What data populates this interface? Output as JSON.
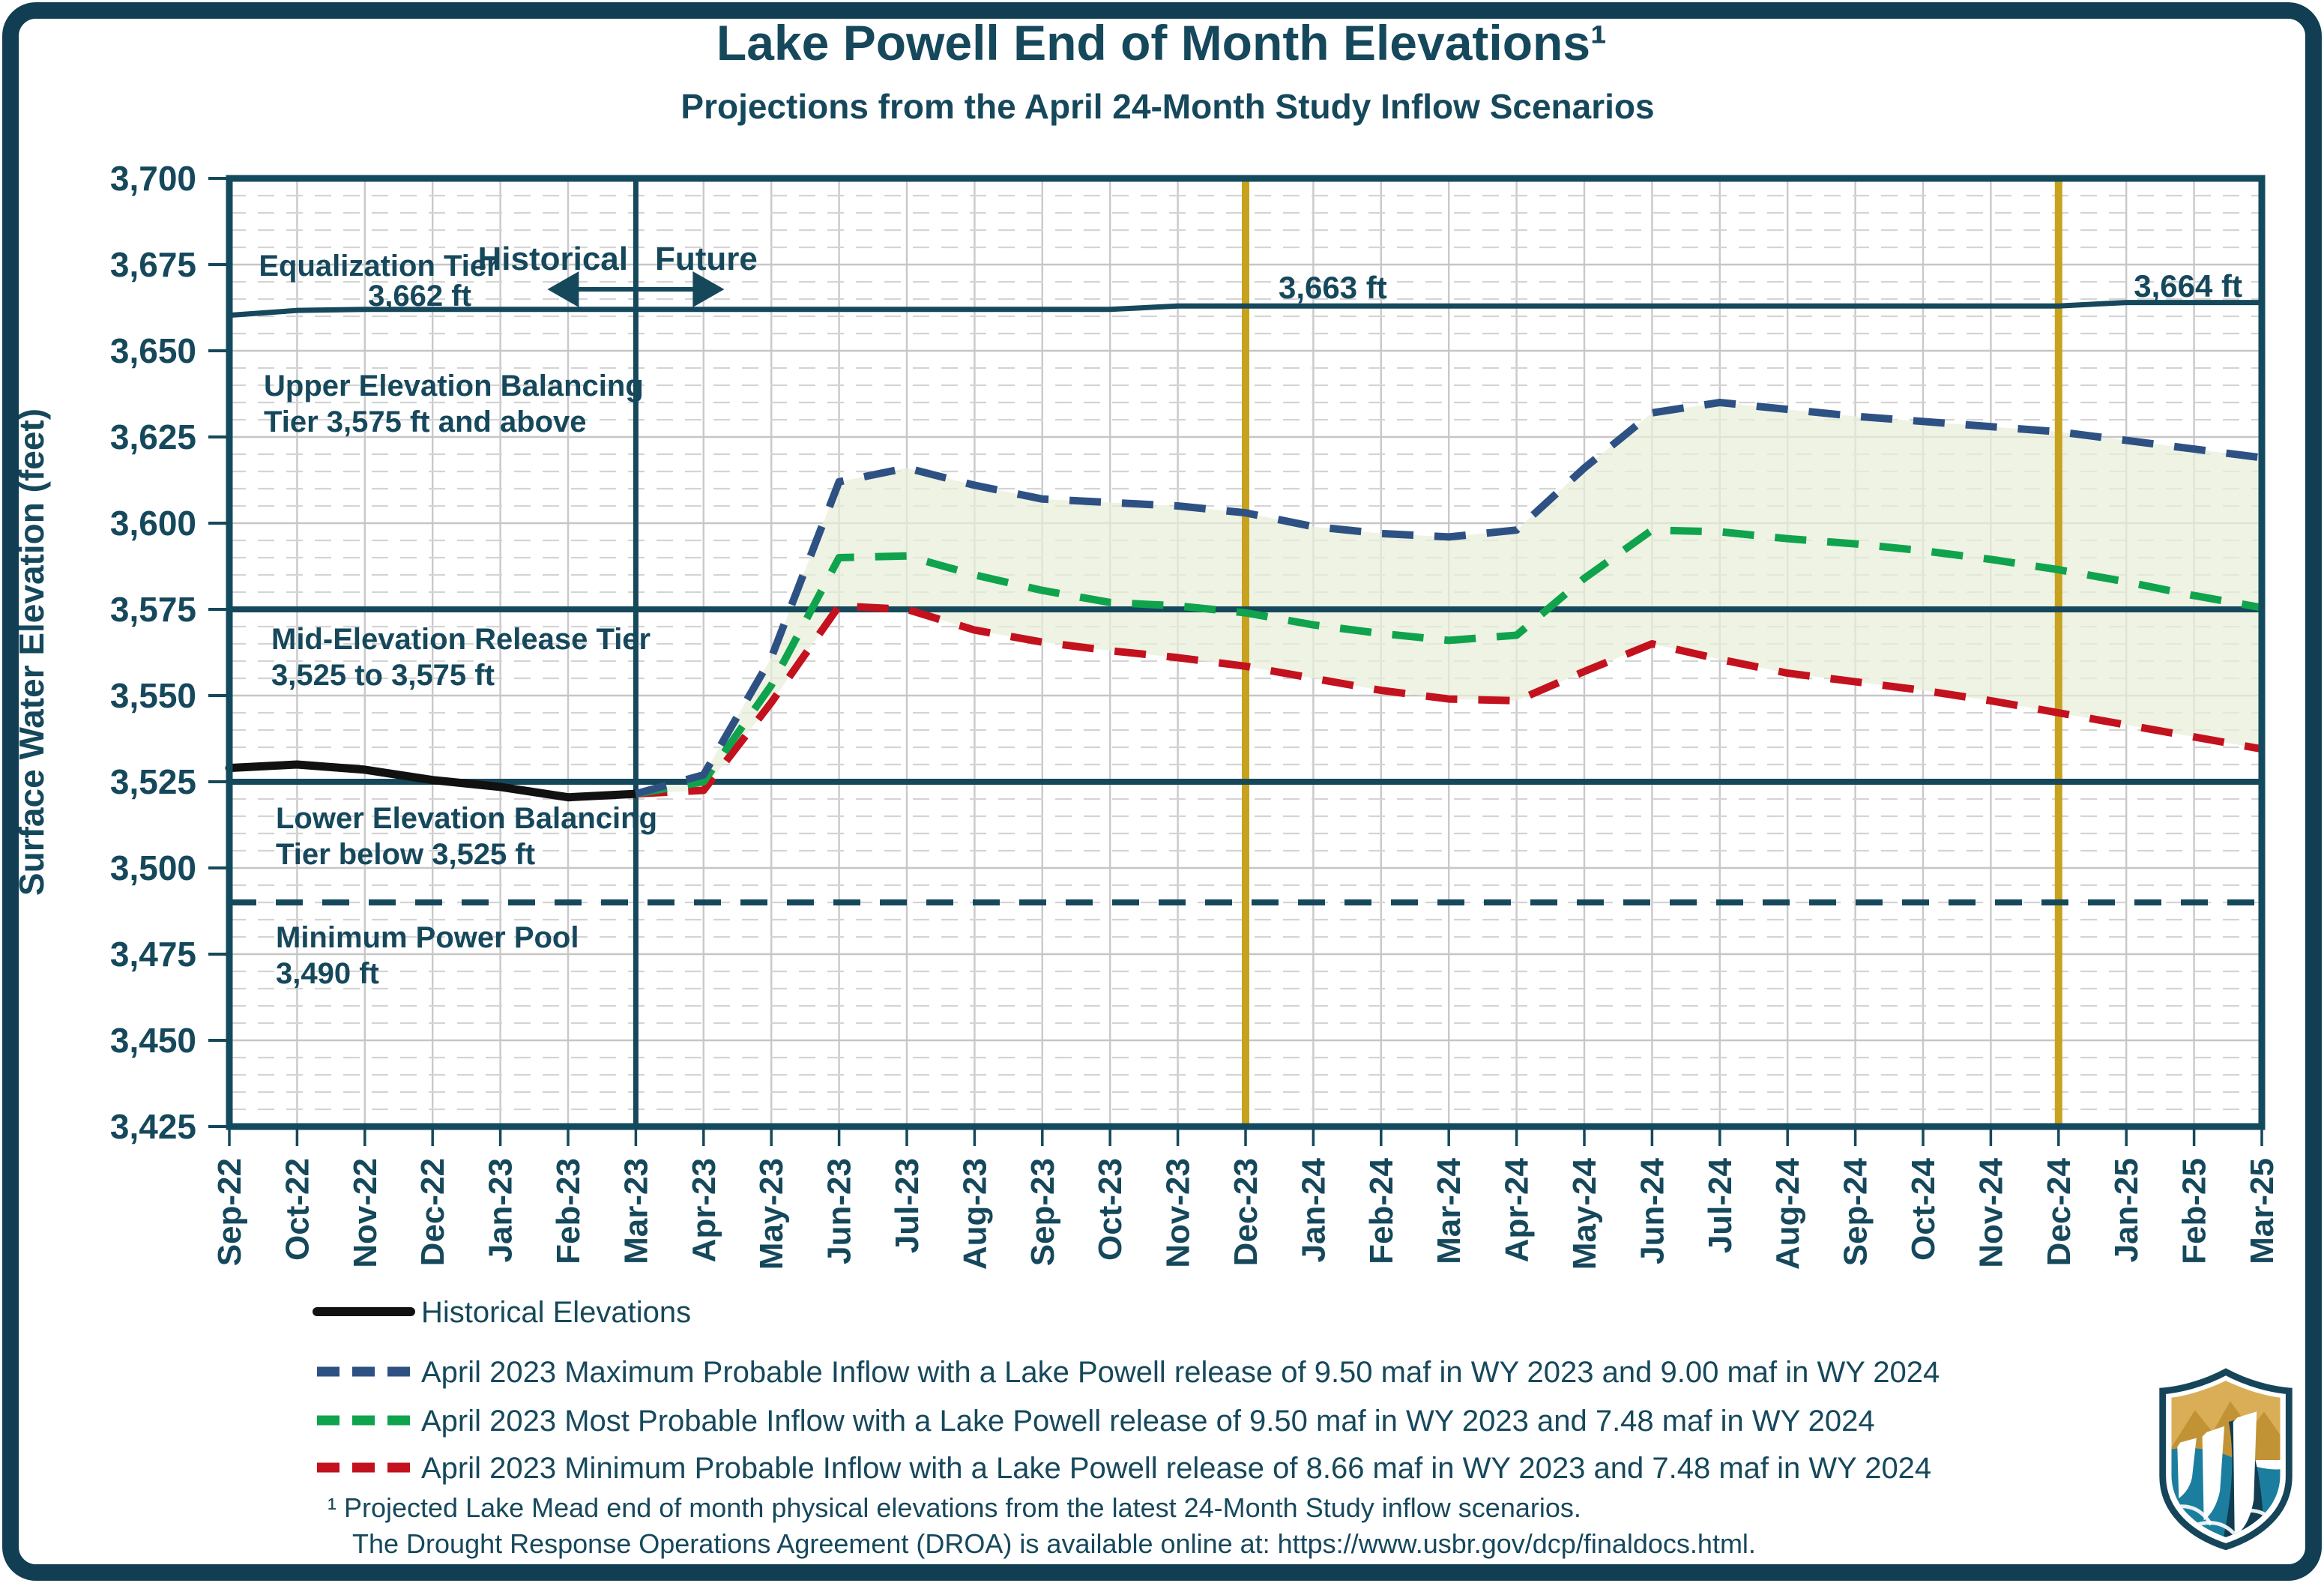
{
  "title": "Lake Powell End of Month Elevations¹",
  "subtitle": "Projections from the April 24-Month Study Inflow Scenarios",
  "y_axis": {
    "label": "Surface Water Elevation (feet)",
    "tick_labels": [
      "3,700",
      "3,675",
      "3,650",
      "3,625",
      "3,600",
      "3,575",
      "3,550",
      "3,525",
      "3,500",
      "3,475",
      "3,450",
      "3,425"
    ],
    "min": 3425,
    "max": 3700,
    "step": 25
  },
  "divider": {
    "historical_label": "Historical",
    "future_label": "Future",
    "month": "Mar-23"
  },
  "annotations": {
    "equalization_dec23": "3,663 ft",
    "equalization_mar25": "3,664 ft"
  },
  "tier_labels": {
    "equalization_line1": "Equalization Tier",
    "equalization_line2": "3,662 ft",
    "upper_line1": "Upper Elevation Balancing",
    "upper_line2": "Tier 3,575 ft and above",
    "mid_line1": "Mid-Elevation Release Tier",
    "mid_line2": "3,525 to 3,575 ft",
    "lower_line1": "Lower Elevation Balancing",
    "lower_line2": "Tier below 3,525 ft",
    "power_line1": "Minimum Power Pool",
    "power_line2": "3,490 ft"
  },
  "legend": {
    "items": [
      {
        "key": "historical",
        "label": "Historical Elevations"
      },
      {
        "key": "max",
        "label": "April 2023 Maximum Probable Inflow with a Lake Powell release of 9.50 maf in WY 2023 and 9.00 maf in WY 2024"
      },
      {
        "key": "most",
        "label": "April 2023 Most Probable Inflow with a Lake Powell release of 9.50 maf in WY 2023 and 7.48 maf in WY 2024"
      },
      {
        "key": "min",
        "label": "April 2023 Minimum Probable Inflow with a Lake Powell release of 8.66 maf in WY 2023 and 7.48 maf in WY 2024"
      }
    ]
  },
  "footnote": {
    "line1": "¹ Projected Lake Mead end of month physical elevations from the latest 24-Month Study inflow scenarios.",
    "line2": "The Drought Response Operations Agreement (DROA) is available online at: https://www.usbr.gov/dcp/finaldocs.html."
  },
  "colors": {
    "dark_teal": "#16485C",
    "frame": "#113E52",
    "navy": "#2E5184",
    "green": "#0FA34E",
    "red": "#C3111E",
    "gold": "#C6A21F",
    "black": "#111111",
    "band": "#E9EFD8",
    "grid_major": "#C6C6C6",
    "grid_minor": "#D4D4D4",
    "grid_vertical": "#C9C9C9",
    "logo_gold": "#C99F3F",
    "logo_teal": "#1C7E9E"
  },
  "chart_data": {
    "type": "line",
    "title": "Lake Powell End of Month Elevations",
    "subtitle": "Projections from the April 24-Month Study Inflow Scenarios",
    "ylabel": "Surface Water Elevation (feet)",
    "ylim": [
      3425,
      3700
    ],
    "y_tick_step": 25,
    "grid": true,
    "legend_position": "bottom-left",
    "x": [
      "Sep-22",
      "Oct-22",
      "Nov-22",
      "Dec-22",
      "Jan-23",
      "Feb-23",
      "Mar-23",
      "Apr-23",
      "May-23",
      "Jun-23",
      "Jul-23",
      "Aug-23",
      "Sep-23",
      "Oct-23",
      "Nov-23",
      "Dec-23",
      "Jan-24",
      "Feb-24",
      "Mar-24",
      "Apr-24",
      "May-24",
      "Jun-24",
      "Jul-24",
      "Aug-24",
      "Sep-24",
      "Oct-24",
      "Nov-24",
      "Dec-24",
      "Jan-25",
      "Feb-25",
      "Mar-25"
    ],
    "series": [
      {
        "key": "historical",
        "name": "Historical Elevations",
        "color": "#111111",
        "style": "solid",
        "values": [
          3529,
          3530,
          3528.5,
          3525.5,
          3523.5,
          3520.5,
          3521.5,
          null,
          null,
          null,
          null,
          null,
          null,
          null,
          null,
          null,
          null,
          null,
          null,
          null,
          null,
          null,
          null,
          null,
          null,
          null,
          null,
          null,
          null,
          null,
          null
        ]
      },
      {
        "key": "max",
        "name": "April 2023 Maximum Probable Inflow",
        "color": "#2E5184",
        "style": "dashed",
        "values": [
          null,
          null,
          null,
          null,
          null,
          null,
          3521.5,
          3527,
          3561,
          3612,
          3616,
          3611,
          3607,
          3606,
          3605,
          3603,
          3599,
          3597,
          3596,
          3598,
          3616,
          3632,
          3635,
          3633,
          3631,
          3629.5,
          3628,
          3626.5,
          3624,
          3621.5,
          3619
        ]
      },
      {
        "key": "most",
        "name": "April 2023 Most Probable Inflow",
        "color": "#0FA34E",
        "style": "dashed",
        "values": [
          null,
          null,
          null,
          null,
          null,
          null,
          3521.5,
          3525,
          3553,
          3590,
          3590.5,
          3585,
          3580.5,
          3577,
          3576,
          3574,
          3570.5,
          3568,
          3566,
          3567.5,
          3584,
          3598,
          3597.5,
          3595.5,
          3594,
          3592,
          3589.5,
          3586.5,
          3583,
          3579,
          3575.5
        ]
      },
      {
        "key": "min",
        "name": "April 2023 Minimum Probable Inflow",
        "color": "#C3111E",
        "style": "dashed",
        "values": [
          null,
          null,
          null,
          null,
          null,
          null,
          3521.5,
          3522.5,
          3548,
          3576,
          3575,
          3569,
          3565.5,
          3563,
          3561,
          3558.5,
          3555,
          3551.5,
          3549,
          3548.5,
          3557,
          3565,
          3560.5,
          3556.5,
          3554,
          3551.5,
          3548.5,
          3545,
          3541.5,
          3538,
          3534.5
        ]
      },
      {
        "key": "equalization",
        "name": "Equalization Tier Elevation",
        "color": "#16485C",
        "style": "solid",
        "values": [
          3660.3,
          3661.7,
          3662,
          3662,
          3662,
          3662,
          3662,
          3662,
          3662,
          3662,
          3662,
          3662,
          3662,
          3662,
          3663,
          3663,
          3663,
          3663,
          3663,
          3663,
          3663,
          3663,
          3663,
          3663,
          3663,
          3663,
          3663,
          3663,
          3664,
          3664,
          3664
        ]
      }
    ],
    "reference_lines": [
      {
        "value": 3575,
        "style": "solid",
        "label": "Upper Elevation Balancing Tier threshold"
      },
      {
        "value": 3525,
        "style": "solid",
        "label": "Mid-Elevation Release Tier threshold"
      },
      {
        "value": 3490,
        "style": "dashed",
        "label": "Minimum Power Pool"
      }
    ],
    "vertical_lines": [
      {
        "x": "Mar-23",
        "role": "historical-future-divider",
        "color": "#16485C"
      },
      {
        "x": "Dec-23",
        "role": "highlight",
        "color": "#C6A21F"
      },
      {
        "x": "Dec-24",
        "role": "highlight",
        "color": "#C6A21F"
      }
    ],
    "band": {
      "upper": "max",
      "lower": "min",
      "color": "#E9EFD8"
    }
  }
}
